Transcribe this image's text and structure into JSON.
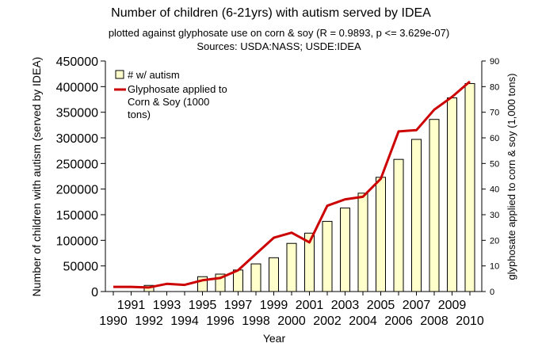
{
  "chart_data": {
    "type": "bar",
    "title": "Number of children (6-21yrs) with autism served by IDEA",
    "subtitle_1": "plotted against glyphosate use on corn & soy (R = 0.9893, p <= 3.629e-07)",
    "subtitle_2": "Sources: USDA:NASS; USDE:IDEA",
    "xlabel": "Year",
    "ylabel_left": "Number of children with autism (served by IDEA)",
    "ylabel_right": "glyphosate applied to corn & soy (1,000 tons)",
    "x_ticks_upper": [
      "1991",
      "1993",
      "1995",
      "1997",
      "1999",
      "2001",
      "2003",
      "2005",
      "2007",
      "2009"
    ],
    "x_ticks_lower": [
      "1990",
      "1992",
      "1994",
      "1996",
      "1998",
      "2000",
      "2002",
      "2004",
      "2006",
      "2008",
      "2010"
    ],
    "y_left_ticks": [
      "0",
      "50000",
      "100000",
      "150000",
      "200000",
      "250000",
      "300000",
      "350000",
      "400000",
      "450000"
    ],
    "y_right_ticks": [
      "0",
      "10",
      "20",
      "30",
      "40",
      "50",
      "60",
      "70",
      "80",
      "90"
    ],
    "ylim_left": [
      0,
      450000
    ],
    "ylim_right": [
      0,
      90
    ],
    "grid": false,
    "legend_position": "top-left",
    "series": [
      {
        "name": "# w/ autism",
        "type": "bar",
        "axis": "left",
        "color": "#ffffcc",
        "x": [
          1992,
          1995,
          1996,
          1997,
          1998,
          1999,
          2000,
          2001,
          2002,
          2003,
          2004,
          2005,
          2006,
          2007,
          2008,
          2009,
          2010
        ],
        "values": [
          12000,
          29000,
          34000,
          42000,
          54000,
          66000,
          94000,
          114000,
          137000,
          163000,
          192000,
          223000,
          258000,
          297000,
          336000,
          378000,
          406000
        ]
      },
      {
        "name": "Glyphosate applied to Corn & Soy (1000 tons)",
        "legend_lines": [
          "Glyphosate applied to",
          "Corn & Soy (1000",
          "tons)"
        ],
        "type": "line",
        "axis": "right",
        "color": "#cc0000",
        "x": [
          1990,
          1991,
          1992,
          1993,
          1994,
          1995,
          1996,
          1997,
          1998,
          1999,
          2000,
          2001,
          2002,
          2003,
          2004,
          2005,
          2006,
          2007,
          2008,
          2009,
          2010
        ],
        "values": [
          1.8,
          1.8,
          1.6,
          3.0,
          2.6,
          4.4,
          5.3,
          8.3,
          14.7,
          21.0,
          23.0,
          19.2,
          33.5,
          36.0,
          37.0,
          44.0,
          62.5,
          63.0,
          71.0,
          76.0,
          82.0
        ]
      }
    ]
  }
}
